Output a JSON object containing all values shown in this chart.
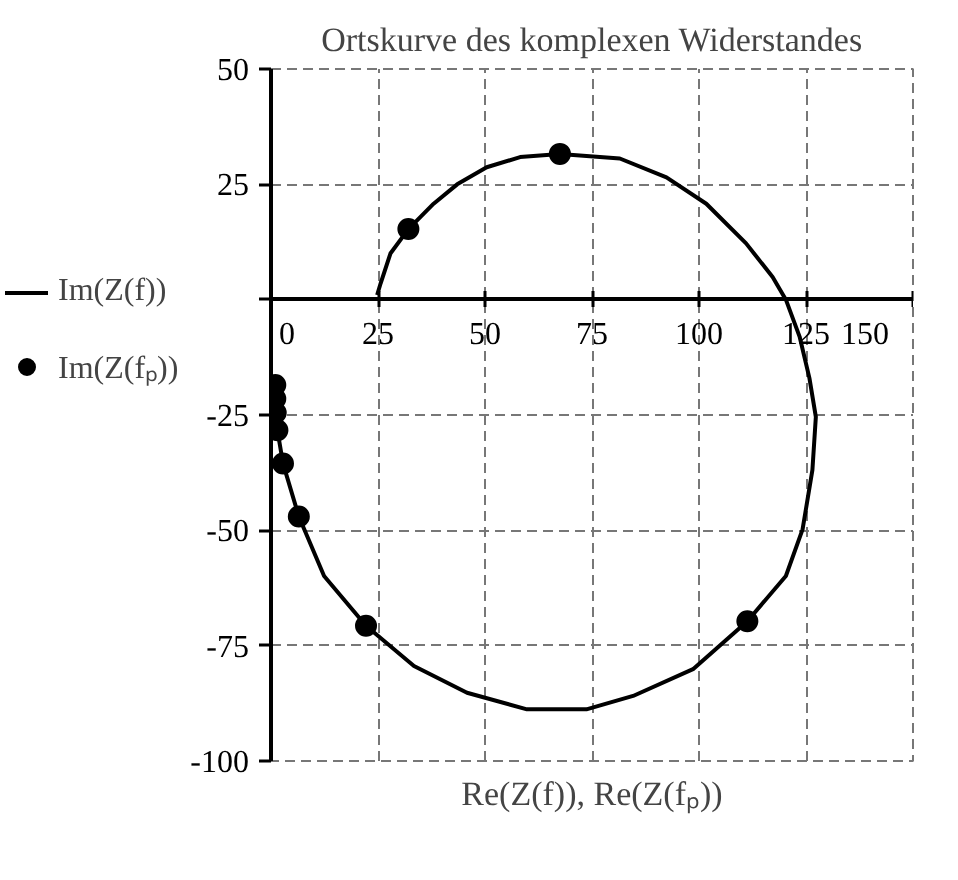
{
  "chart_data": {
    "type": "line",
    "title": "Ortskurve des komplexen Widerstandes",
    "xlabel": "Re(Z(f)), Re(Z(fₚ))",
    "xlim": [
      0,
      150
    ],
    "xticks": [
      0,
      25,
      50,
      75,
      100,
      125,
      150
    ],
    "ylim": [
      -100,
      50
    ],
    "yticks": [
      -100,
      -75,
      -50,
      -25,
      {
        "value": 0,
        "label": null
      },
      25,
      50
    ],
    "grid": true,
    "legend": "left",
    "series": [
      {
        "name": "Im(Z(f))",
        "type": "line",
        "color": "#000000",
        "line_style": "solid",
        "x": [
          24.8,
          25.6,
          27.9,
          32.1,
          38.0,
          43.5,
          50.4,
          58.2,
          67.5,
          81.5,
          92.4,
          101.7,
          111.0,
          117.2,
          120.3,
          123.5,
          125.8,
          127.3,
          126.5,
          124.2,
          120.3,
          111.3,
          98.6,
          84.6,
          73.7,
          59.8,
          45.8,
          33.4,
          22.2,
          12.4,
          6.5,
          2.8,
          1.5,
          1.1,
          1.1
        ],
        "values": [
          1.0,
          3.5,
          10.0,
          15.3,
          20.8,
          25.0,
          28.7,
          30.9,
          31.6,
          30.6,
          26.5,
          20.8,
          12.2,
          4.9,
          0.0,
          -8.0,
          -17.0,
          -25.4,
          -36.9,
          -49.8,
          -59.9,
          -69.7,
          -80.1,
          -85.9,
          -88.8,
          -88.8,
          -85.2,
          -79.4,
          -70.7,
          -59.9,
          -47.0,
          -35.5,
          -28.3,
          -24.0,
          -18.0
        ]
      },
      {
        "name": "Im(Z(fₚ))",
        "type": "scatter",
        "color": "#000000",
        "marker": "circle",
        "x": [
          32.1,
          67.5,
          111.3,
          22.2,
          6.5,
          2.8,
          1.5,
          1.1,
          1.0,
          1.0
        ],
        "values": [
          15.3,
          31.6,
          -69.7,
          -70.7,
          -47.0,
          -35.5,
          -28.3,
          -24.5,
          -21.5,
          -18.5
        ]
      }
    ]
  }
}
